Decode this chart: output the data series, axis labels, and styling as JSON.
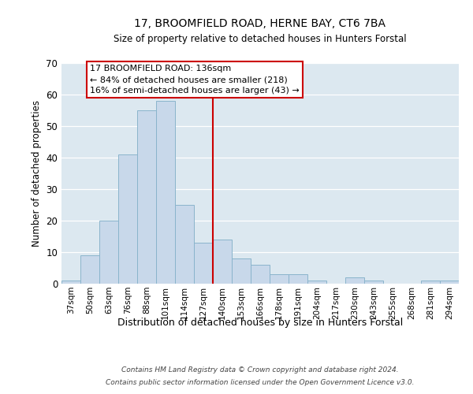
{
  "title": "17, BROOMFIELD ROAD, HERNE BAY, CT6 7BA",
  "subtitle": "Size of property relative to detached houses in Hunters Forstal",
  "xlabel": "Distribution of detached houses by size in Hunters Forstal",
  "ylabel": "Number of detached properties",
  "bar_labels": [
    "37sqm",
    "50sqm",
    "63sqm",
    "76sqm",
    "88sqm",
    "101sqm",
    "114sqm",
    "127sqm",
    "140sqm",
    "153sqm",
    "166sqm",
    "178sqm",
    "191sqm",
    "204sqm",
    "217sqm",
    "230sqm",
    "243sqm",
    "255sqm",
    "268sqm",
    "281sqm",
    "294sqm"
  ],
  "bar_heights": [
    1,
    9,
    20,
    41,
    55,
    58,
    25,
    13,
    14,
    8,
    6,
    3,
    3,
    1,
    0,
    2,
    1,
    0,
    0,
    1,
    1
  ],
  "bar_color": "#c8d8ea",
  "bar_edge_color": "#8ab4cc",
  "vline_color": "#cc0000",
  "ylim": [
    0,
    70
  ],
  "yticks": [
    0,
    10,
    20,
    30,
    40,
    50,
    60,
    70
  ],
  "annotation_box_line1": "17 BROOMFIELD ROAD: 136sqm",
  "annotation_box_line2": "← 84% of detached houses are smaller (218)",
  "annotation_box_line3": "16% of semi-detached houses are larger (43) →",
  "annotation_box_color": "#cc0000",
  "footnote1": "Contains HM Land Registry data © Crown copyright and database right 2024.",
  "footnote2": "Contains public sector information licensed under the Open Government Licence v3.0.",
  "background_color": "#dce8f0",
  "plot_bg_color": "#dce8f0",
  "figsize": [
    6.0,
    5.0
  ],
  "dpi": 100
}
